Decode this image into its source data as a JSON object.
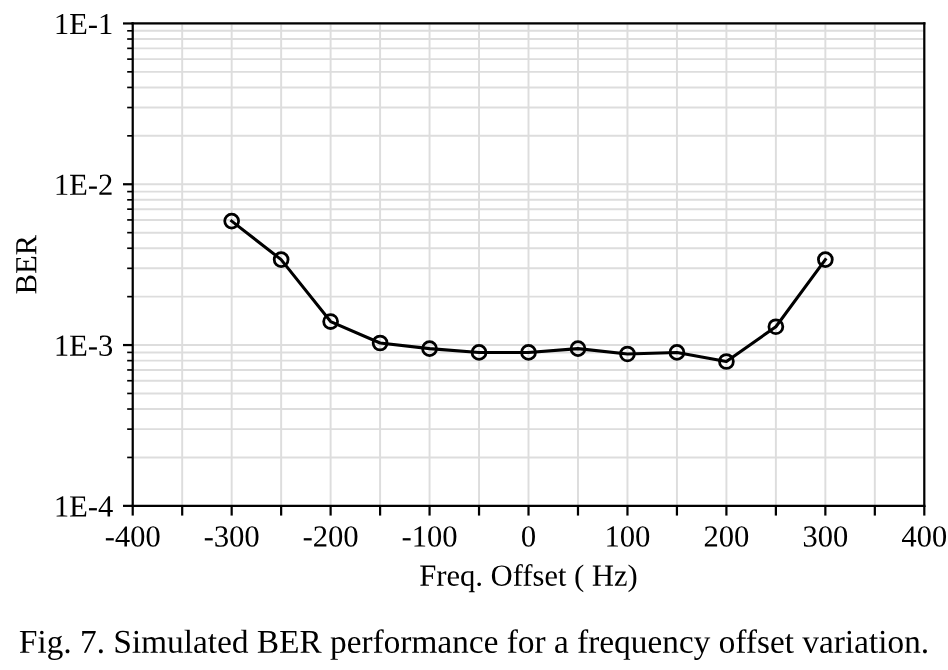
{
  "chart_data": {
    "type": "line",
    "xlabel": "Freq. Offset ( Hz)",
    "ylabel": "BER",
    "annotations": [
      "Fig. 7. Simulated BER performance for a frequency offset variation."
    ],
    "x": [
      -300,
      -250,
      -200,
      -150,
      -100,
      -50,
      0,
      50,
      100,
      150,
      200,
      250,
      300
    ],
    "series": [
      {
        "color": "#000000",
        "values": [
          0.0059,
          0.0034,
          0.0014,
          0.00103,
          0.00095,
          0.0009,
          0.0009,
          0.00095,
          0.00088,
          0.0009,
          0.00079,
          0.0013,
          0.0034
        ]
      }
    ],
    "log": "y",
    "xlim": [
      -400,
      400
    ],
    "xticks": [
      -400,
      {
        "value": -350,
        "label": null
      },
      -300,
      {
        "value": -250,
        "label": null
      },
      -200,
      {
        "value": -150,
        "label": null
      },
      -100,
      {
        "value": -50,
        "label": null
      },
      0,
      {
        "value": 50,
        "label": null
      },
      100,
      {
        "value": 150,
        "label": null
      },
      200,
      {
        "value": 250,
        "label": null
      },
      300,
      {
        "value": 350,
        "label": null
      },
      400
    ],
    "ylim": [
      0.0001,
      0.1
    ],
    "yticks": [
      {
        "value": 0.0001,
        "label": "1E-4"
      },
      {
        "value": 0.001,
        "label": "1E-3"
      },
      {
        "value": 0.01,
        "label": "1E-2"
      },
      {
        "value": 0.1,
        "label": "1E-1"
      }
    ],
    "grid": true,
    "marker": "circle",
    "line_style": "solid",
    "legend": false
  }
}
